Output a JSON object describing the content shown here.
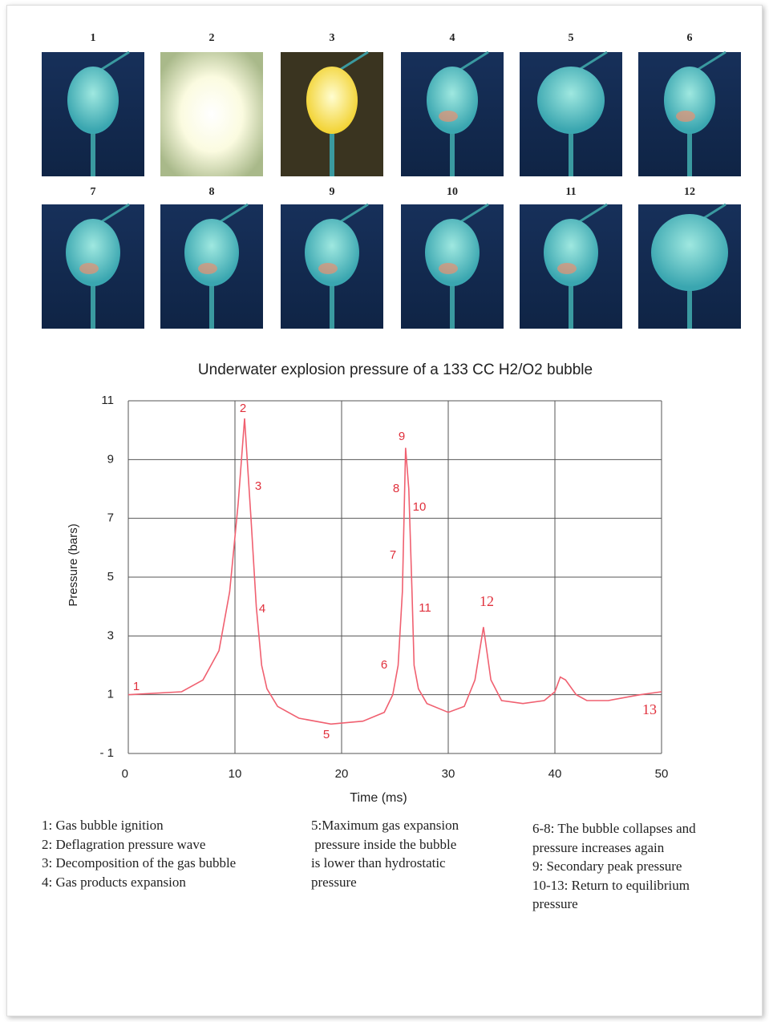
{
  "photos": {
    "labels": [
      "1",
      "2",
      "3",
      "4",
      "5",
      "6",
      "7",
      "8",
      "9",
      "10",
      "11",
      "12"
    ]
  },
  "chart_data": {
    "type": "line",
    "title": "Underwater explosion pressure of a 133 CC  H2/O2 bubble",
    "x_label": "Time (ms)",
    "y_label": "Pressure (bars)",
    "x": [
      0,
      5,
      7,
      8.5,
      9.5,
      10.3,
      10.9,
      11.5,
      12,
      12.5,
      13,
      14,
      16,
      19,
      22,
      24,
      24.8,
      25.3,
      25.7,
      26,
      26.3,
      26.6,
      26.8,
      27.2,
      28,
      30,
      31.5,
      32.5,
      33.3,
      34,
      35,
      37,
      39,
      40,
      40.5,
      41,
      42,
      43,
      45,
      48,
      50
    ],
    "values": [
      1,
      1.1,
      1.5,
      2.5,
      4.5,
      7.5,
      10.4,
      7,
      4,
      2,
      1.2,
      0.6,
      0.2,
      0,
      0.1,
      0.4,
      1,
      2,
      4.5,
      9.4,
      8,
      4.5,
      2,
      1.2,
      0.7,
      0.4,
      0.6,
      1.5,
      3.3,
      1.5,
      0.8,
      0.7,
      0.8,
      1.1,
      1.6,
      1.5,
      1,
      0.8,
      0.8,
      1,
      1.1
    ],
    "color": "#f06070",
    "xlim": [
      0,
      50
    ],
    "xticks": [
      0,
      10,
      20,
      30,
      40,
      50
    ],
    "ylim": [
      -1,
      11
    ],
    "yticks": [
      {
        "value": -1,
        "label": "- 1"
      },
      1,
      3,
      5,
      7,
      9,
      11
    ],
    "grid": true,
    "annotations": [
      "1",
      "2",
      "3",
      "4",
      "5",
      "6",
      "7",
      "8",
      "9",
      "10",
      "11",
      "12",
      "13"
    ]
  },
  "notes": [
    [
      "1: Gas bubble ignition",
      "2: Deflagration pressure wave",
      "3: Decomposition of the gas bubble",
      "4: Gas products expansion"
    ],
    [
      "5:Maximum gas expansion",
      " pressure inside the bubble",
      "is lower than hydrostatic",
      "pressure"
    ],
    [
      "6-8: The bubble collapses and",
      "pressure increases again",
      "9: Secondary peak pressure",
      "10-13: Return to equilibrium",
      "pressure"
    ]
  ]
}
